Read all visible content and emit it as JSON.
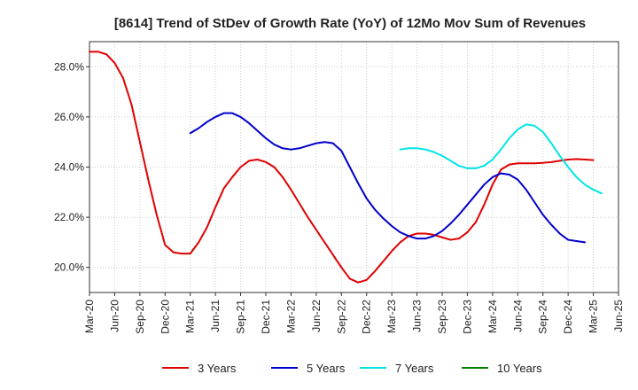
{
  "chart_data": {
    "type": "line",
    "title": "[8614]  Trend of StDev of Growth Rate (YoY) of 12Mo Mov Sum of Revenues",
    "xlabel": "",
    "ylabel": "",
    "x_ticks": [
      "Mar-20",
      "Jun-20",
      "Sep-20",
      "Dec-20",
      "Mar-21",
      "Jun-21",
      "Sep-21",
      "Dec-21",
      "Mar-22",
      "Jun-22",
      "Sep-22",
      "Dec-22",
      "Mar-23",
      "Jun-23",
      "Sep-23",
      "Dec-23",
      "Mar-24",
      "Jun-24",
      "Sep-24",
      "Dec-24",
      "Mar-25",
      "Jun-25"
    ],
    "y_ticks": [
      "20.0%",
      "22.0%",
      "24.0%",
      "26.0%",
      "28.0%"
    ],
    "y_tick_values": [
      20,
      22,
      24,
      26,
      28
    ],
    "ylim": [
      19.0,
      29.0
    ],
    "x_range_months": [
      0,
      63
    ],
    "grid": true,
    "legend_position": "bottom",
    "series": [
      {
        "name": "3 Years",
        "color": "#e00000",
        "start_month": 0,
        "values": [
          28.6,
          28.6,
          28.5,
          28.15,
          27.55,
          26.5,
          25.0,
          23.5,
          22.1,
          20.9,
          20.6,
          20.55,
          20.55,
          21.0,
          21.6,
          22.4,
          23.15,
          23.6,
          24.0,
          24.25,
          24.3,
          24.2,
          24.0,
          23.6,
          23.1,
          22.55,
          22.0,
          21.5,
          21.0,
          20.5,
          20.0,
          19.55,
          19.4,
          19.5,
          19.85,
          20.25,
          20.65,
          21.0,
          21.25,
          21.35,
          21.35,
          21.3,
          21.2,
          21.1,
          21.15,
          21.4,
          21.8,
          22.5,
          23.3,
          23.9,
          24.1,
          24.15,
          24.15,
          24.15,
          24.17,
          24.2,
          24.25,
          24.3,
          24.32,
          24.3,
          24.28
        ]
      },
      {
        "name": "5 Years",
        "color": "#0000cc",
        "start_month": 12,
        "values": [
          25.35,
          25.55,
          25.8,
          26.0,
          26.15,
          26.15,
          26.0,
          25.75,
          25.45,
          25.15,
          24.9,
          24.75,
          24.7,
          24.75,
          24.85,
          24.95,
          25.0,
          24.95,
          24.65,
          24.0,
          23.35,
          22.75,
          22.3,
          21.95,
          21.65,
          21.4,
          21.25,
          21.15,
          21.15,
          21.25,
          21.45,
          21.75,
          22.1,
          22.5,
          22.9,
          23.3,
          23.6,
          23.75,
          23.7,
          23.5,
          23.1,
          22.6,
          22.1,
          21.7,
          21.35,
          21.1,
          21.05,
          21.0
        ]
      },
      {
        "name": "7 Years",
        "color": "#00e5e5",
        "start_month": 37,
        "values": [
          24.7,
          24.75,
          24.75,
          24.7,
          24.6,
          24.45,
          24.25,
          24.05,
          23.95,
          23.95,
          24.05,
          24.3,
          24.7,
          25.15,
          25.5,
          25.7,
          25.65,
          25.4,
          24.95,
          24.45,
          24.0,
          23.6,
          23.3,
          23.1,
          22.95
        ]
      },
      {
        "name": "10 Years",
        "color": "#008000",
        "start_month": 0,
        "values": []
      }
    ]
  }
}
